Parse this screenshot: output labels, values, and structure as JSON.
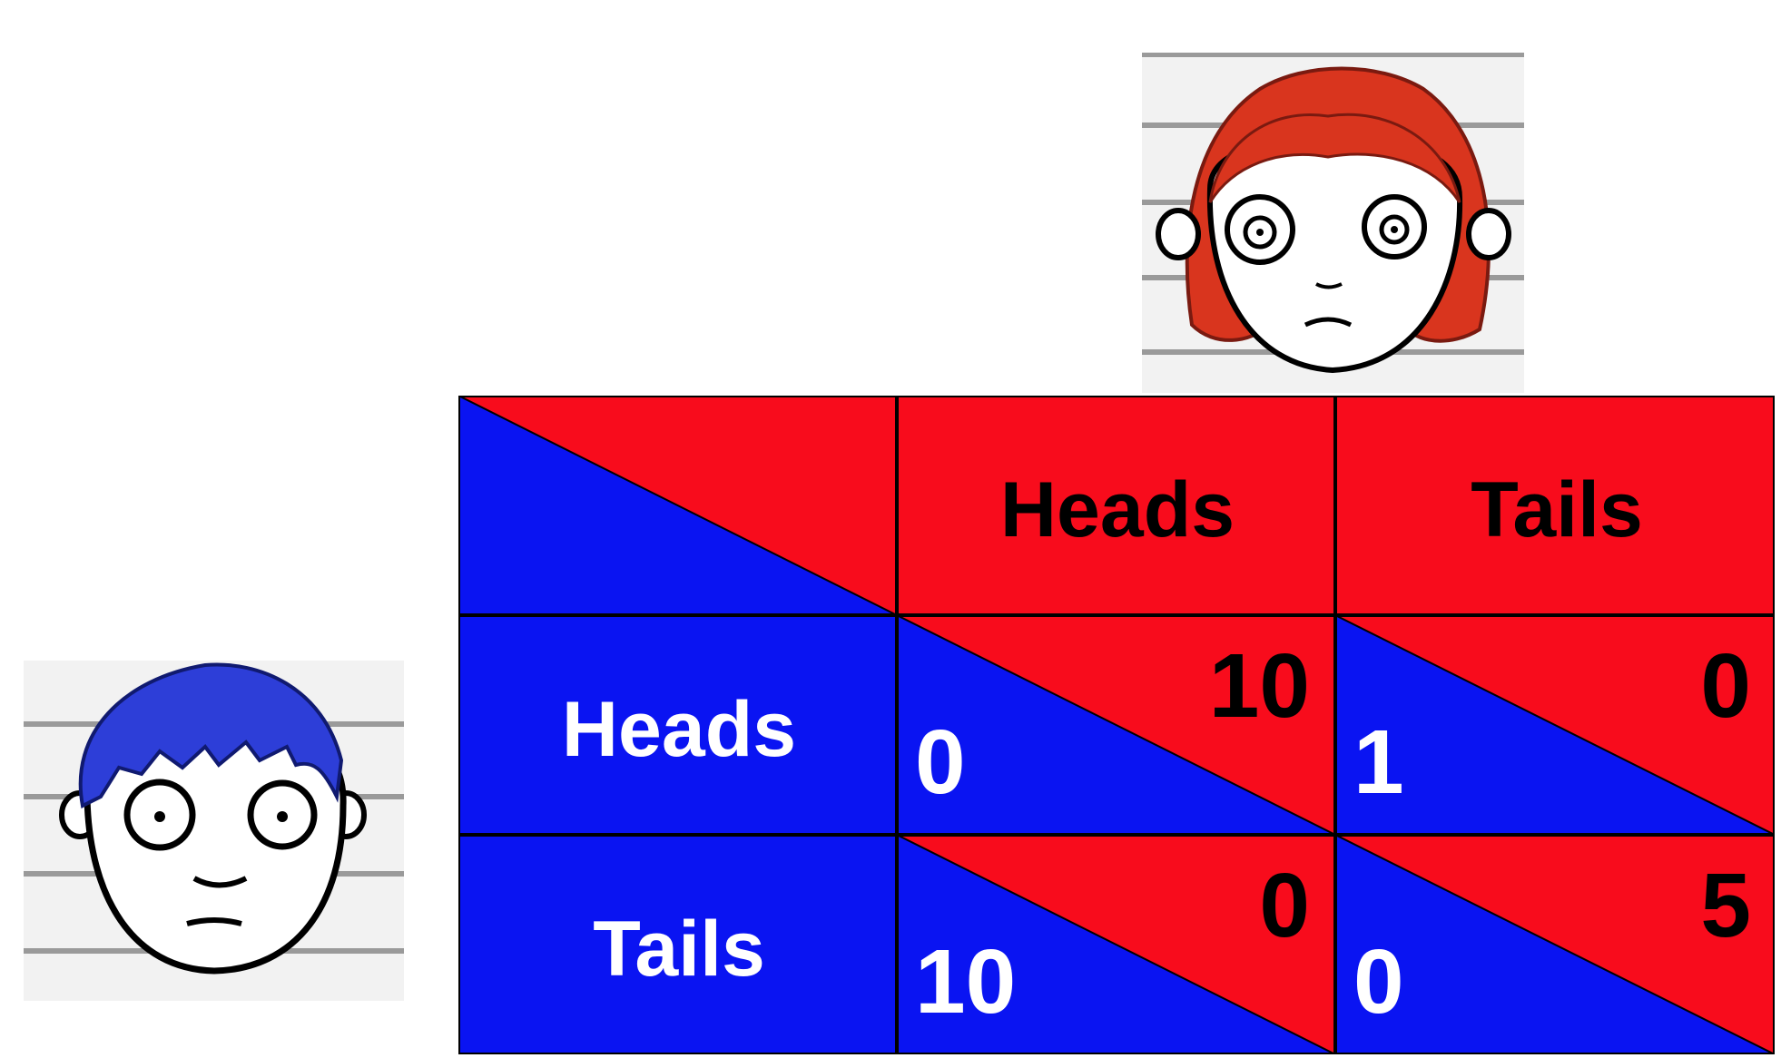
{
  "colors": {
    "player_blue": "#0a14f2",
    "player_red": "#f80c1c",
    "outline": "#000000",
    "label_on_red": "#000000",
    "label_on_blue": "#ffffff"
  },
  "players": {
    "column_player": {
      "icon": "red-haired-girl-face-icon"
    },
    "row_player": {
      "icon": "blue-haired-boy-face-icon"
    }
  },
  "matrix": {
    "column_headers": [
      "Heads",
      "Tails"
    ],
    "row_headers": [
      "Heads",
      "Tails"
    ],
    "cells": [
      [
        {
          "red": "10",
          "blue": "0"
        },
        {
          "red": "0",
          "blue": "1"
        }
      ],
      [
        {
          "red": "0",
          "blue": "10"
        },
        {
          "red": "5",
          "blue": "0"
        }
      ]
    ]
  }
}
